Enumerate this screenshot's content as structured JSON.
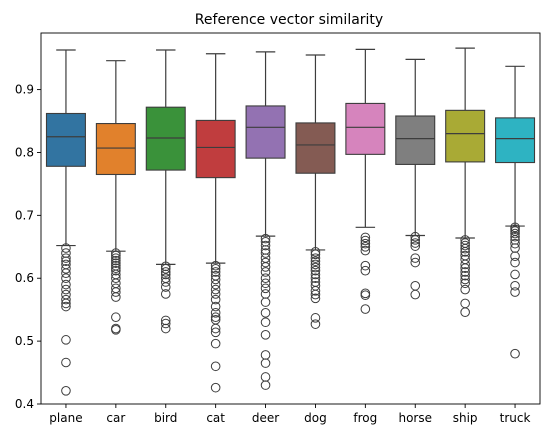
{
  "chart_data": {
    "type": "box",
    "title": "Reference vector similarity",
    "xlabel": "",
    "ylabel": "",
    "ylim": [
      0.4,
      0.99
    ],
    "yticks": [
      0.4,
      0.5,
      0.6,
      0.7,
      0.8,
      0.9
    ],
    "ytick_labels": [
      "0.4",
      "0.5",
      "0.6",
      "0.7",
      "0.8",
      "0.9"
    ],
    "grid": false,
    "legend": "none",
    "categories": [
      {
        "name": "plane",
        "color": "#3274a1",
        "q1": 0.778,
        "median": 0.825,
        "q3": 0.862,
        "whisker_low": 0.652,
        "whisker_high": 0.963,
        "outliers": [
          0.648,
          0.64,
          0.632,
          0.627,
          0.622,
          0.615,
          0.608,
          0.6,
          0.59,
          0.582,
          0.574,
          0.566,
          0.56,
          0.555,
          0.502,
          0.466,
          0.421
        ]
      },
      {
        "name": "car",
        "color": "#e1812c",
        "q1": 0.765,
        "median": 0.807,
        "q3": 0.846,
        "whisker_low": 0.643,
        "whisker_high": 0.946,
        "outliers": [
          0.64,
          0.636,
          0.632,
          0.628,
          0.624,
          0.62,
          0.616,
          0.612,
          0.606,
          0.6,
          0.592,
          0.584,
          0.578,
          0.57,
          0.538,
          0.52,
          0.518
        ]
      },
      {
        "name": "bird",
        "color": "#3a923a",
        "q1": 0.772,
        "median": 0.823,
        "q3": 0.872,
        "whisker_low": 0.622,
        "whisker_high": 0.963,
        "outliers": [
          0.619,
          0.615,
          0.61,
          0.606,
          0.6,
          0.594,
          0.586,
          0.575,
          0.533,
          0.528,
          0.52
        ]
      },
      {
        "name": "cat",
        "color": "#c03d3e",
        "q1": 0.76,
        "median": 0.808,
        "q3": 0.851,
        "whisker_low": 0.624,
        "whisker_high": 0.957,
        "outliers": [
          0.62,
          0.615,
          0.61,
          0.604,
          0.598,
          0.59,
          0.582,
          0.575,
          0.566,
          0.555,
          0.545,
          0.538,
          0.534,
          0.52,
          0.514,
          0.496,
          0.46,
          0.426
        ]
      },
      {
        "name": "deer",
        "color": "#9372b2",
        "q1": 0.791,
        "median": 0.84,
        "q3": 0.874,
        "whisker_low": 0.667,
        "whisker_high": 0.96,
        "outliers": [
          0.663,
          0.658,
          0.652,
          0.645,
          0.64,
          0.632,
          0.625,
          0.618,
          0.61,
          0.6,
          0.592,
          0.584,
          0.575,
          0.562,
          0.545,
          0.53,
          0.51,
          0.478,
          0.465,
          0.443,
          0.43
        ]
      },
      {
        "name": "dog",
        "color": "#845b53",
        "q1": 0.767,
        "median": 0.812,
        "q3": 0.847,
        "whisker_low": 0.645,
        "whisker_high": 0.955,
        "outliers": [
          0.642,
          0.638,
          0.632,
          0.627,
          0.622,
          0.617,
          0.612,
          0.606,
          0.6,
          0.594,
          0.588,
          0.58,
          0.574,
          0.568,
          0.537,
          0.527
        ]
      },
      {
        "name": "frog",
        "color": "#d684bd",
        "q1": 0.797,
        "median": 0.84,
        "q3": 0.878,
        "whisker_low": 0.681,
        "whisker_high": 0.964,
        "outliers": [
          0.665,
          0.66,
          0.655,
          0.65,
          0.644,
          0.62,
          0.612,
          0.576,
          0.573,
          0.551
        ]
      },
      {
        "name": "horse",
        "color": "#7f7f7f",
        "q1": 0.781,
        "median": 0.822,
        "q3": 0.858,
        "whisker_low": 0.668,
        "whisker_high": 0.948,
        "outliers": [
          0.666,
          0.661,
          0.656,
          0.651,
          0.632,
          0.625,
          0.588,
          0.574
        ]
      },
      {
        "name": "ship",
        "color": "#a9aa35",
        "q1": 0.785,
        "median": 0.83,
        "q3": 0.867,
        "whisker_low": 0.664,
        "whisker_high": 0.966,
        "outliers": [
          0.661,
          0.656,
          0.652,
          0.647,
          0.642,
          0.636,
          0.63,
          0.622,
          0.616,
          0.61,
          0.604,
          0.598,
          0.592,
          0.582,
          0.56,
          0.546
        ]
      },
      {
        "name": "truck",
        "color": "#2eb3c2",
        "q1": 0.784,
        "median": 0.822,
        "q3": 0.855,
        "whisker_low": 0.683,
        "whisker_high": 0.937,
        "outliers": [
          0.681,
          0.678,
          0.675,
          0.671,
          0.666,
          0.661,
          0.655,
          0.648,
          0.635,
          0.625,
          0.606,
          0.588,
          0.578,
          0.48
        ]
      }
    ]
  }
}
